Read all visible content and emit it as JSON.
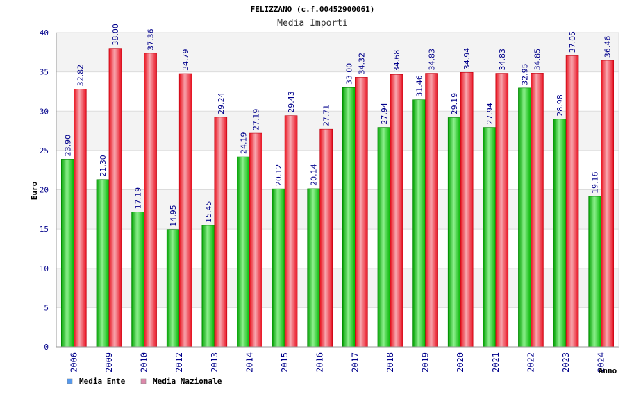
{
  "chart_data": {
    "type": "bar",
    "title": "FELIZZANO (c.f.00452900061)",
    "subtitle": "Media Importi",
    "xlabel": "Anno",
    "ylabel": "Euro",
    "ylim": [
      0,
      40
    ],
    "yticks": [
      0,
      5,
      10,
      15,
      20,
      25,
      30,
      35,
      40
    ],
    "grid": true,
    "legend_position": "bottom-left",
    "categories": [
      "2006",
      "2009",
      "2010",
      "2012",
      "2013",
      "2014",
      "2015",
      "2016",
      "2017",
      "2018",
      "2019",
      "2020",
      "2021",
      "2022",
      "2023",
      "2024"
    ],
    "series": [
      {
        "name": "Media Ente",
        "color": "#00b000",
        "legend_color": "#5599ee",
        "values": [
          23.9,
          21.3,
          17.19,
          14.95,
          15.45,
          24.19,
          20.12,
          20.14,
          33.0,
          27.94,
          31.46,
          29.19,
          27.94,
          32.95,
          28.98,
          19.16
        ],
        "labels": [
          "23.90",
          "21.30",
          "17.19",
          "14.95",
          "15.45",
          "24.19",
          "20.12",
          "20.14",
          "33.00",
          "27.94",
          "31.46",
          "29.19",
          "27.94",
          "32.95",
          "28.98",
          "19.16"
        ]
      },
      {
        "name": "Media Nazionale",
        "color": "#ee1122",
        "legend_color": "#dd88aa",
        "values": [
          32.82,
          38.0,
          37.36,
          34.79,
          29.24,
          27.19,
          29.43,
          27.71,
          34.32,
          34.68,
          34.83,
          34.94,
          34.83,
          34.85,
          37.05,
          36.46
        ],
        "labels": [
          "32.82",
          "38.00",
          "37.36",
          "34.79",
          "29.24",
          "27.19",
          "29.43",
          "27.71",
          "34.32",
          "34.68",
          "34.83",
          "34.94",
          "34.83",
          "34.85",
          "37.05",
          "36.46"
        ]
      }
    ]
  }
}
